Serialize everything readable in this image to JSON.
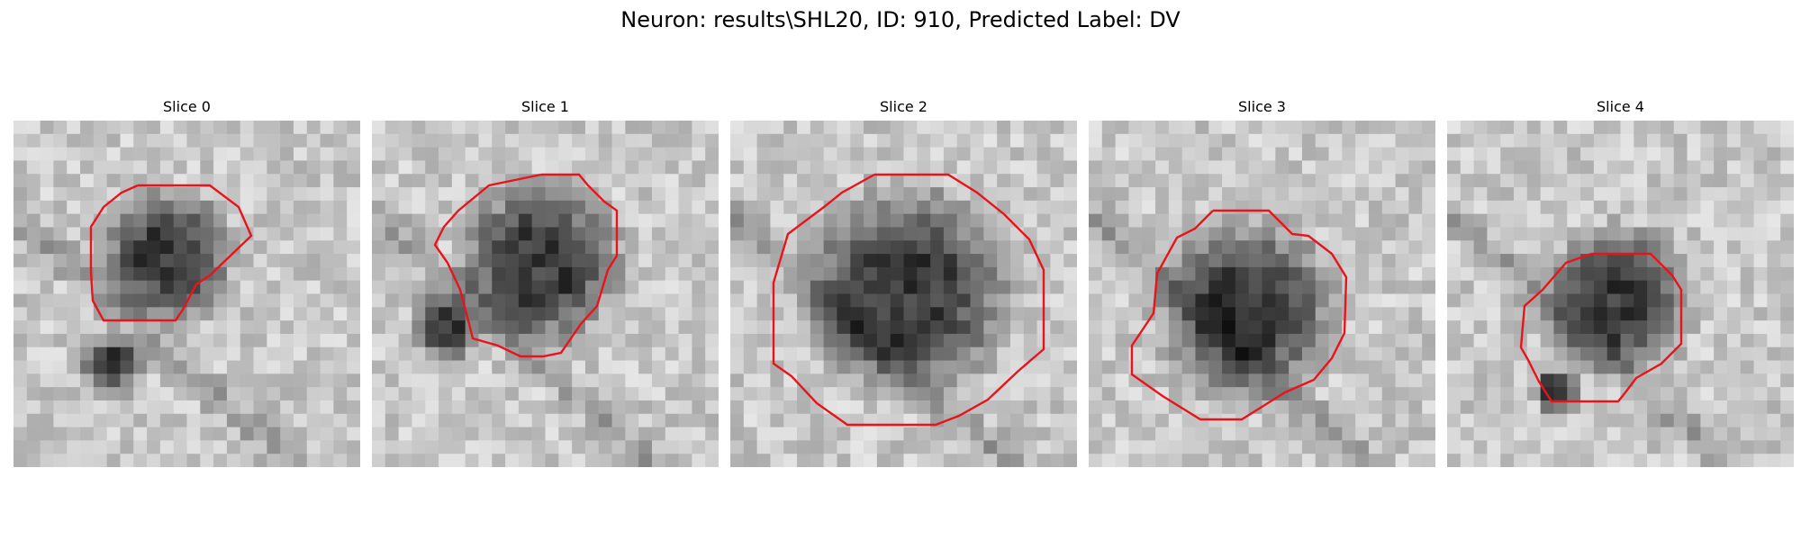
{
  "figure": {
    "title": "Neuron: results\\SHL20, ID: 910, Predicted Label: DV"
  },
  "panels": [
    {
      "title": "Slice 0"
    },
    {
      "title": "Slice 1"
    },
    {
      "title": "Slice 2"
    },
    {
      "title": "Slice 3"
    },
    {
      "title": "Slice 4"
    }
  ],
  "style": {
    "contour_color": "#e8141c",
    "colormap": "grayscale"
  }
}
